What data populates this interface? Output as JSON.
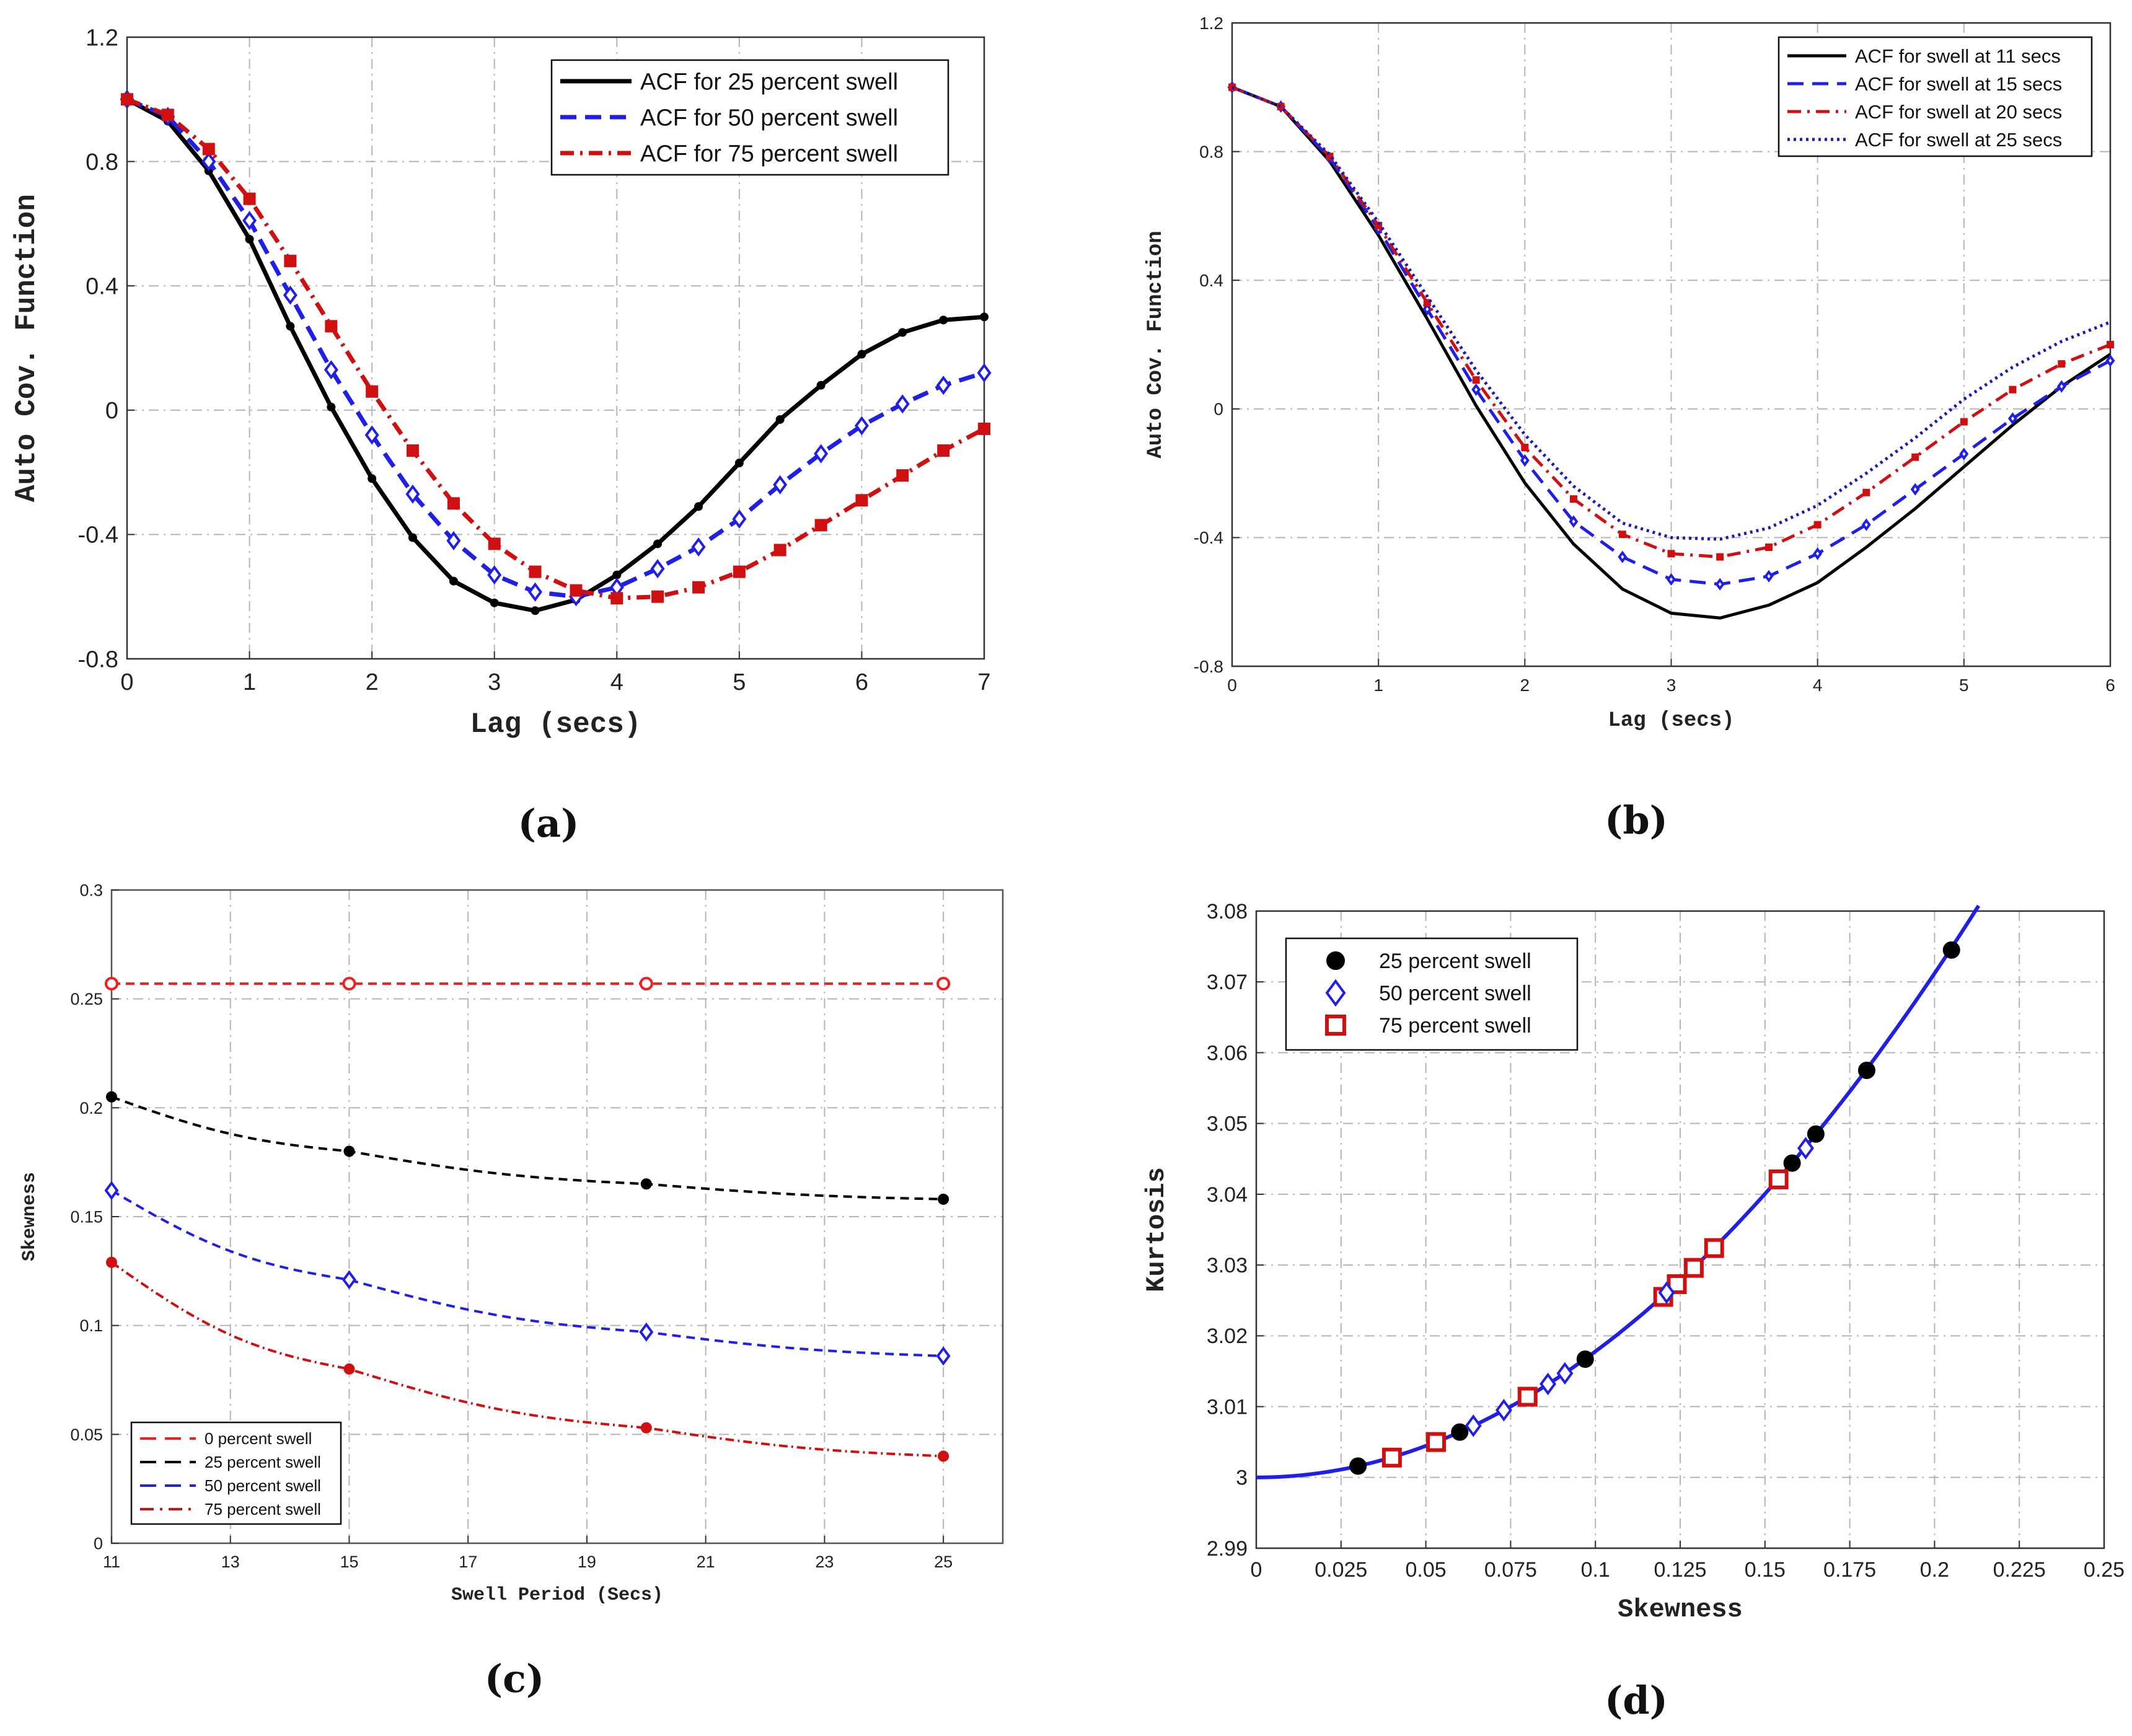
{
  "figure": {
    "panel_labels": [
      "(a)",
      "(b)",
      "(c)",
      "(d)"
    ]
  },
  "chart_data": [
    {
      "id": "a",
      "type": "line",
      "title": "",
      "xlabel": "Lag (secs)",
      "ylabel": "Auto Cov. Function",
      "xlim": [
        0,
        7
      ],
      "ylim": [
        -0.8,
        1.2
      ],
      "xticks": [
        0,
        1,
        2,
        3,
        4,
        5,
        6,
        7
      ],
      "xtick_labels": [
        "0",
        "1",
        "2",
        "3",
        "4",
        "5",
        "6",
        "7"
      ],
      "yticks": [
        -0.8,
        -0.4,
        0,
        0.4,
        0.8,
        1.2
      ],
      "ytick_labels": [
        "-0.8",
        "-0.4",
        "0",
        "0.4",
        "0.8",
        "1.2"
      ],
      "grid": true,
      "legend_position": "top-right",
      "x": [
        0,
        0.333,
        0.667,
        1.0,
        1.333,
        1.667,
        2.0,
        2.333,
        2.667,
        3.0,
        3.333,
        3.667,
        4.0,
        4.333,
        4.667,
        5.0,
        5.333,
        5.667,
        6.0,
        6.333,
        6.667,
        7.0
      ],
      "series": [
        {
          "name": "ACF for 25 percent swell",
          "color": "#000000",
          "dash": "solid",
          "marker": "circle",
          "values": [
            1.0,
            0.93,
            0.77,
            0.55,
            0.27,
            0.01,
            -0.22,
            -0.41,
            -0.55,
            -0.62,
            -0.645,
            -0.61,
            -0.53,
            -0.43,
            -0.31,
            -0.17,
            -0.03,
            0.08,
            0.18,
            0.25,
            0.29,
            0.3
          ]
        },
        {
          "name": "ACF for 50 percent swell",
          "color": "#1f1fe8",
          "dash": "dashed",
          "marker": "diamond",
          "values": [
            1.0,
            0.945,
            0.8,
            0.61,
            0.37,
            0.13,
            -0.08,
            -0.27,
            -0.42,
            -0.53,
            -0.585,
            -0.6,
            -0.57,
            -0.51,
            -0.44,
            -0.35,
            -0.24,
            -0.14,
            -0.05,
            0.02,
            0.08,
            0.12
          ]
        },
        {
          "name": "ACF for 75 percent swell",
          "color": "#d01010",
          "dash": "dashdot",
          "marker": "square",
          "values": [
            1.0,
            0.95,
            0.84,
            0.68,
            0.48,
            0.27,
            0.06,
            -0.13,
            -0.3,
            -0.43,
            -0.52,
            -0.58,
            -0.605,
            -0.6,
            -0.57,
            -0.52,
            -0.45,
            -0.37,
            -0.29,
            -0.21,
            -0.13,
            -0.06
          ]
        }
      ]
    },
    {
      "id": "b",
      "type": "line",
      "title": "",
      "xlabel": "Lag (secs)",
      "ylabel": "Auto Cov. Function",
      "xlim": [
        0,
        6
      ],
      "ylim": [
        -0.8,
        1.2
      ],
      "xticks": [
        0,
        1,
        2,
        3,
        4,
        5,
        6
      ],
      "xtick_labels": [
        "0",
        "1",
        "2",
        "3",
        "4",
        "5",
        "6"
      ],
      "yticks": [
        -0.8,
        -0.4,
        0,
        0.4,
        0.8,
        1.2
      ],
      "ytick_labels": [
        "-0.8",
        "-0.4",
        "0",
        "0.4",
        "0.8",
        "1.2"
      ],
      "grid": true,
      "legend_position": "top-right",
      "x": [
        0,
        0.333,
        0.667,
        1.0,
        1.333,
        1.667,
        2.0,
        2.333,
        2.667,
        3.0,
        3.333,
        3.667,
        4.0,
        4.333,
        4.667,
        5.0,
        5.333,
        5.667,
        6.0
      ],
      "series": [
        {
          "name": "ACF for swell at 11 secs",
          "color": "#000000",
          "dash": "solid",
          "marker": "none",
          "values": [
            1.0,
            0.94,
            0.77,
            0.54,
            0.28,
            0.01,
            -0.23,
            -0.42,
            -0.56,
            -0.635,
            -0.65,
            -0.61,
            -0.54,
            -0.43,
            -0.31,
            -0.18,
            -0.05,
            0.07,
            0.17
          ]
        },
        {
          "name": "ACF for swell at 15 secs",
          "color": "#1f1fe8",
          "dash": "dashed",
          "marker": "diamond",
          "values": [
            1.0,
            0.94,
            0.78,
            0.56,
            0.31,
            0.06,
            -0.16,
            -0.35,
            -0.46,
            -0.53,
            -0.545,
            -0.52,
            -0.45,
            -0.36,
            -0.25,
            -0.14,
            -0.03,
            0.07,
            0.15
          ]
        },
        {
          "name": "ACF for swell at 20 secs",
          "color": "#d01010",
          "dash": "dashdot",
          "marker": "square",
          "values": [
            1.0,
            0.94,
            0.785,
            0.57,
            0.33,
            0.09,
            -0.12,
            -0.28,
            -0.39,
            -0.45,
            -0.46,
            -0.43,
            -0.36,
            -0.26,
            -0.15,
            -0.04,
            0.06,
            0.14,
            0.2
          ]
        },
        {
          "name": "ACF for swell at 25 secs",
          "color": "#1a1ab8",
          "dash": "dotted",
          "marker": "none",
          "values": [
            1.0,
            0.94,
            0.79,
            0.58,
            0.35,
            0.12,
            -0.08,
            -0.24,
            -0.355,
            -0.4,
            -0.405,
            -0.37,
            -0.3,
            -0.2,
            -0.09,
            0.03,
            0.13,
            0.21,
            0.27
          ]
        }
      ]
    },
    {
      "id": "c",
      "type": "line",
      "title": "",
      "xlabel": "Swell Period (Secs)",
      "ylabel": "Skewness",
      "xlim": [
        11,
        26
      ],
      "ylim": [
        0,
        0.3
      ],
      "xticks": [
        11,
        13,
        15,
        17,
        19,
        21,
        23,
        25
      ],
      "xtick_labels": [
        "11",
        "13",
        "15",
        "17",
        "19",
        "21",
        "23",
        "25"
      ],
      "yticks": [
        0,
        0.05,
        0.1,
        0.15,
        0.2,
        0.25,
        0.3
      ],
      "ytick_labels": [
        "0",
        "0.05",
        "0.1",
        "0.15",
        "0.2",
        "0.25",
        "0.3"
      ],
      "grid": true,
      "legend_position": "bottom-left",
      "x": [
        11,
        15,
        20,
        25
      ],
      "series": [
        {
          "name": "0 percent swell",
          "color": "#ee2020",
          "dash": "dashed",
          "marker": "open-circle",
          "values": [
            0.257,
            0.257,
            0.257,
            0.257
          ]
        },
        {
          "name": "25 percent swell",
          "color": "#000000",
          "dash": "dashed",
          "marker": "dot",
          "values": [
            0.205,
            0.18,
            0.165,
            0.158
          ]
        },
        {
          "name": "50 percent swell",
          "color": "#1f1fe8",
          "dash": "dashed",
          "marker": "diamond",
          "values": [
            0.162,
            0.121,
            0.097,
            0.086
          ]
        },
        {
          "name": "75 percent swell",
          "color": "#d01010",
          "dash": "dashdot",
          "marker": "dot",
          "values": [
            0.129,
            0.08,
            0.053,
            0.04
          ]
        }
      ]
    },
    {
      "id": "d",
      "type": "scatter",
      "title": "",
      "xlabel": "Skewness",
      "ylabel": "Kurtosis",
      "xlim": [
        0,
        0.25
      ],
      "ylim": [
        2.99,
        3.08
      ],
      "xticks": [
        0,
        0.025,
        0.05,
        0.075,
        0.1,
        0.125,
        0.15,
        0.175,
        0.2,
        0.225,
        0.25
      ],
      "xtick_labels": [
        "0",
        "0.025",
        "0.05",
        "0.075",
        "0.1",
        "0.125",
        "0.15",
        "0.175",
        "0.2",
        "0.225",
        "0.25"
      ],
      "yticks": [
        2.99,
        3.0,
        3.01,
        3.02,
        3.03,
        3.04,
        3.05,
        3.06,
        3.07,
        3.08
      ],
      "ytick_labels": [
        "2.99",
        "3",
        "3.01",
        "3.02",
        "3.03",
        "3.04",
        "3.05",
        "3.06",
        "3.07",
        "3.08"
      ],
      "grid": true,
      "legend_position": "top-left",
      "curve": {
        "name": "fit",
        "color": "#1f1fe8",
        "x_range": [
          0,
          0.213
        ],
        "formula": "3 + 1.78 * x^2"
      },
      "series": [
        {
          "name": "25 percent swell",
          "color": "#000000",
          "marker": "filled-circle",
          "x": [
            0.03,
            0.04,
            0.06,
            0.097,
            0.158,
            0.165,
            0.18,
            0.205
          ],
          "y": [
            3.0016,
            3.0028,
            3.0064,
            3.0167,
            3.0444,
            3.0485,
            3.0575,
            3.0745
          ]
        },
        {
          "name": "50 percent swell",
          "color": "#1f1fe8",
          "marker": "open-diamond",
          "x": [
            0.064,
            0.073,
            0.086,
            0.091,
            0.121,
            0.162
          ],
          "y": [
            3.0073,
            3.0095,
            3.0132,
            3.0147,
            3.0261,
            3.0465
          ]
        },
        {
          "name": "75 percent swell",
          "color": "#d01010",
          "marker": "open-square",
          "x": [
            0.04,
            0.053,
            0.08,
            0.12,
            0.124,
            0.129,
            0.135,
            0.154
          ],
          "y": [
            3.0028,
            3.005,
            3.0114,
            3.0255,
            3.0273,
            3.0296,
            3.0324,
            3.0421
          ]
        }
      ]
    }
  ]
}
